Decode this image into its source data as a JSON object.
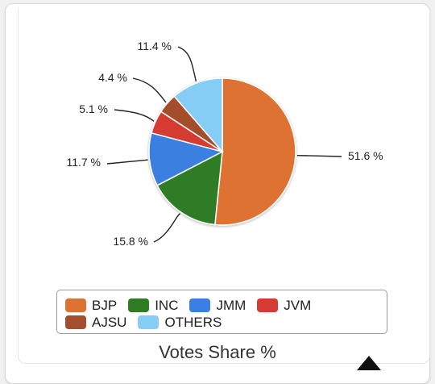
{
  "chart_data": {
    "type": "pie",
    "title": "",
    "footer_title": "Votes Share %",
    "slices": [
      {
        "label": "BJP",
        "value": 51.6,
        "display": "51.6 %",
        "color": "#dd7231"
      },
      {
        "label": "INC",
        "value": 15.8,
        "display": "15.8 %",
        "color": "#2e7d25"
      },
      {
        "label": "JMM",
        "value": 11.7,
        "display": "11.7 %",
        "color": "#3a7fe1"
      },
      {
        "label": "JVM",
        "value": 5.1,
        "display": "5.1 %",
        "color": "#d63a32"
      },
      {
        "label": "AJSU",
        "value": 4.4,
        "display": "4.4 %",
        "color": "#a34e2c"
      },
      {
        "label": "OTHERS",
        "value": 11.4,
        "display": "11.4 %",
        "color": "#86cdf5"
      }
    ],
    "legend_position": "bottom"
  }
}
